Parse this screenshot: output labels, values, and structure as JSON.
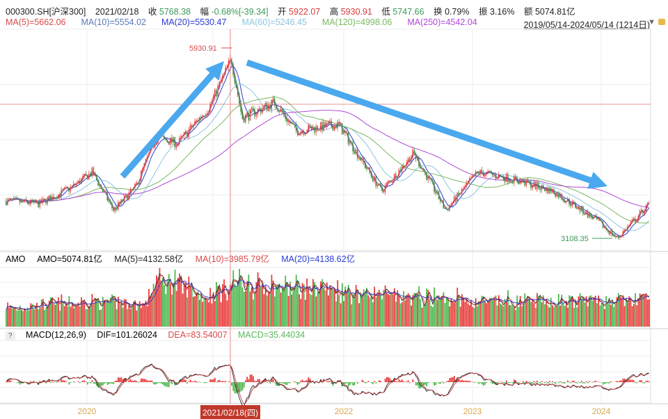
{
  "header": {
    "symbol": "000300.SH[沪深300]",
    "date": "2021/02/18",
    "close_label": "收",
    "close": "5768.38",
    "change_label": "幅",
    "change": "-0.68%[-39.34]",
    "open_label": "开",
    "open": "5922.07",
    "high_label": "高",
    "high": "5930.91",
    "low_label": "低",
    "low": "5747.66",
    "turnover_label": "换",
    "turnover": "0.79%",
    "amplitude_label": "振",
    "amplitude": "3.16%",
    "amount_label": "额",
    "amount": "5074.81亿"
  },
  "ma_legend": [
    {
      "text": "MA(5)=5662.06",
      "color": "#d84a4a"
    },
    {
      "text": "MA(10)=5554.02",
      "color": "#5a78b8"
    },
    {
      "text": "MA(20)=5530.47",
      "color": "#2a3ad0"
    },
    {
      "text": "MA(60)=5246.45",
      "color": "#8cc4e0"
    },
    {
      "text": "MA(120)=4998.06",
      "color": "#7ab860"
    },
    {
      "text": "MA(250)=4542.04",
      "color": "#b048d8"
    }
  ],
  "range": "2019/05/14-2024/05/14 (1214日)",
  "volume_legend": {
    "title": "AMO",
    "amo": "AMO=5074.81亿",
    "ma5": "MA(5)=4132.58亿",
    "ma10": "MA(10)=3985.79亿",
    "ma20": "MA(20)=4138.62亿"
  },
  "macd_legend": {
    "help": "?",
    "title": "MACD(12,26,9)",
    "dif": "DIF=101.26024",
    "dea": "DEA=83.54007",
    "macd": "MACD=35.44034"
  },
  "x_axis": {
    "years": [
      "2020",
      "2022",
      "2023",
      "2024"
    ],
    "cursor_date": "2021/02/18(四)"
  },
  "colors": {
    "up": "#e83a3a",
    "down": "#4cb84c",
    "arrow": "#4aa8ee",
    "cursor": "#e07070"
  },
  "chart_data": {
    "type": "candlestick",
    "title": "000300.SH 沪深300",
    "x_range": [
      "2019/05/14",
      "2024/05/14"
    ],
    "annotations": [
      {
        "text": "5930.91",
        "date": "2021/02/18",
        "kind": "high"
      },
      {
        "text": "3108.35",
        "date": "2024/02",
        "kind": "low"
      }
    ],
    "price_anchors": [
      [
        "2019-05",
        3700
      ],
      [
        "2019-08",
        3650
      ],
      [
        "2019-11",
        3900
      ],
      [
        "2020-01",
        4150
      ],
      [
        "2020-03",
        3550
      ],
      [
        "2020-05",
        3900
      ],
      [
        "2020-07",
        4700
      ],
      [
        "2020-09",
        4600
      ],
      [
        "2020-12",
        5200
      ],
      [
        "2021-02",
        5930
      ],
      [
        "2021-03",
        5000
      ],
      [
        "2021-06",
        5250
      ],
      [
        "2021-08",
        4800
      ],
      [
        "2021-12",
        4900
      ],
      [
        "2022-04",
        3850
      ],
      [
        "2022-07",
        4450
      ],
      [
        "2022-10",
        3550
      ],
      [
        "2023-01",
        4150
      ],
      [
        "2023-04",
        4050
      ],
      [
        "2023-08",
        3850
      ],
      [
        "2023-12",
        3400
      ],
      [
        "2024-02",
        3108
      ],
      [
        "2024-05",
        3650
      ]
    ],
    "amount_anchors_yi": [
      [
        "2019-05",
        2800
      ],
      [
        "2020-01",
        3600
      ],
      [
        "2020-06",
        3200
      ],
      [
        "2020-07",
        7200
      ],
      [
        "2020-12",
        4500
      ],
      [
        "2021-02",
        6200
      ],
      [
        "2021-09",
        5800
      ],
      [
        "2022-06",
        4200
      ],
      [
        "2023-06",
        3500
      ],
      [
        "2024-05",
        4000
      ]
    ]
  }
}
